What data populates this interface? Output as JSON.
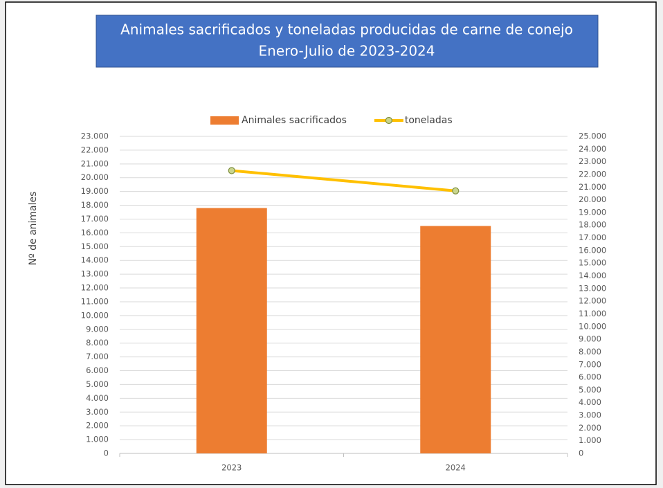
{
  "chart_data": {
    "type": "bar_line",
    "title": "Animales sacrificados y toneladas producidas de carne de conejo",
    "subtitle": "Enero-Julio de 2023-2024",
    "y_label": "Nº de animales",
    "categories": [
      "2023",
      "2024"
    ],
    "series": [
      {
        "name": "Animales sacrificados",
        "type": "bar",
        "color": "#ed7d31",
        "values": [
          17800,
          16500
        ]
      },
      {
        "name": "toneladas",
        "type": "line",
        "color": "#ffc000",
        "marker_color": "#c9d58e",
        "axis": "y2",
        "values": [
          22300,
          20700
        ]
      }
    ],
    "ylim": [
      0,
      23000
    ],
    "yticks": [
      0,
      {
        "value": 1000,
        "label": "1.000"
      },
      {
        "value": 2000,
        "label": "2.000"
      },
      {
        "value": 3000,
        "label": "3.000"
      },
      {
        "value": 4000,
        "label": "4.000"
      },
      {
        "value": 5000,
        "label": "5.000"
      },
      {
        "value": 6000,
        "label": "6.000"
      },
      {
        "value": 7000,
        "label": "7.000"
      },
      {
        "value": 8000,
        "label": "8.000"
      },
      {
        "value": 9000,
        "label": "9.000"
      },
      {
        "value": 10000,
        "label": "10.000"
      },
      {
        "value": 11000,
        "label": "11.000"
      },
      {
        "value": 12000,
        "label": "12.000"
      },
      {
        "value": 13000,
        "label": "13.000"
      },
      {
        "value": 14000,
        "label": "14.000"
      },
      {
        "value": 15000,
        "label": "15.000"
      },
      {
        "value": 16000,
        "label": "16.000"
      },
      {
        "value": 17000,
        "label": "17.000"
      },
      {
        "value": 18000,
        "label": "18.000"
      },
      {
        "value": 19000,
        "label": "19.000"
      },
      {
        "value": 20000,
        "label": "20.000"
      },
      {
        "value": 21000,
        "label": "21.000"
      },
      {
        "value": 22000,
        "label": "22.000"
      },
      {
        "value": 23000,
        "label": "23.000"
      }
    ],
    "y2lim": [
      0,
      25000
    ],
    "y2ticks": [
      0,
      {
        "value": 1000,
        "label": "1.000"
      },
      {
        "value": 2000,
        "label": "2.000"
      },
      {
        "value": 3000,
        "label": "3.000"
      },
      {
        "value": 4000,
        "label": "4.000"
      },
      {
        "value": 5000,
        "label": "5.000"
      },
      {
        "value": 6000,
        "label": "6.000"
      },
      {
        "value": 7000,
        "label": "7.000"
      },
      {
        "value": 8000,
        "label": "8.000"
      },
      {
        "value": 9000,
        "label": "9.000"
      },
      {
        "value": 10000,
        "label": "10.000"
      },
      {
        "value": 11000,
        "label": "11.000"
      },
      {
        "value": 12000,
        "label": "12.000"
      },
      {
        "value": 13000,
        "label": "13.000"
      },
      {
        "value": 14000,
        "label": "14.000"
      },
      {
        "value": 15000,
        "label": "15.000"
      },
      {
        "value": 16000,
        "label": "16.000"
      },
      {
        "value": 17000,
        "label": "17.000"
      },
      {
        "value": 18000,
        "label": "18.000"
      },
      {
        "value": 19000,
        "label": "19.000"
      },
      {
        "value": 20000,
        "label": "20.000"
      },
      {
        "value": 21000,
        "label": "21.000"
      },
      {
        "value": 22000,
        "label": "22.000"
      },
      {
        "value": 23000,
        "label": "23.000"
      },
      {
        "value": 24000,
        "label": "24.000"
      },
      {
        "value": 25000,
        "label": "25.000"
      }
    ],
    "grid": true,
    "legend": "top"
  }
}
